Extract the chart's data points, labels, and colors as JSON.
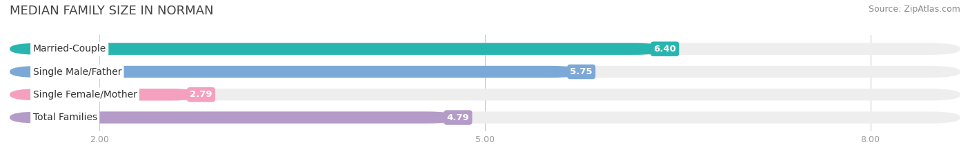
{
  "title": "MEDIAN FAMILY SIZE IN NORMAN",
  "source": "Source: ZipAtlas.com",
  "categories": [
    "Married-Couple",
    "Single Male/Father",
    "Single Female/Mother",
    "Total Families"
  ],
  "values": [
    6.4,
    5.75,
    2.79,
    4.79
  ],
  "bar_colors": [
    "#28b5b0",
    "#7ca8d8",
    "#f5a0be",
    "#b49bc8"
  ],
  "bar_bg_color": "#eeeeee",
  "value_labels": [
    "6.40",
    "5.75",
    "2.79",
    "4.79"
  ],
  "xticks": [
    2.0,
    5.0,
    8.0
  ],
  "xmin": 1.3,
  "xmax": 8.7,
  "title_fontsize": 13,
  "label_fontsize": 10,
  "value_fontsize": 9.5,
  "source_fontsize": 9,
  "title_color": "#444444",
  "label_color": "#333333",
  "value_color": "#ffffff",
  "source_color": "#888888",
  "tick_color": "#999999",
  "grid_color": "#cccccc"
}
